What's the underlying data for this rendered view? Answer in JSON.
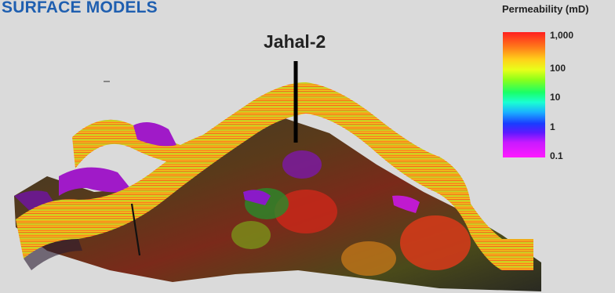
{
  "title": "SURFACE MODELS",
  "well": {
    "name": "Jahal-2"
  },
  "legend": {
    "title": "Permeability (mD)",
    "ticks": [
      "1,000",
      "100",
      "10",
      "1",
      "0.1"
    ]
  },
  "colors": {
    "title": "#1f5fb0",
    "background": "#dadada"
  }
}
